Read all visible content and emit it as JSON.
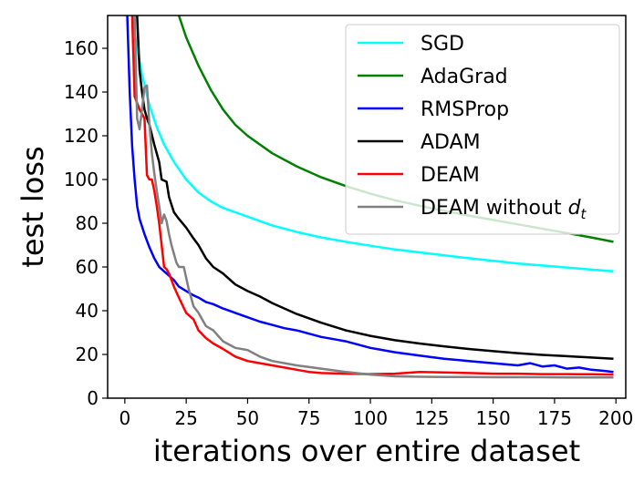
{
  "chart_data": {
    "type": "line",
    "xlabel": "iterations over entire dataset",
    "ylabel": "test loss",
    "xlim": [
      -7,
      204
    ],
    "ylim": [
      0,
      175
    ],
    "xticks": [
      0,
      25,
      50,
      75,
      100,
      125,
      150,
      175,
      200
    ],
    "yticks": [
      0,
      20,
      40,
      60,
      80,
      100,
      120,
      140,
      160
    ],
    "legend_position": "top-right",
    "series": [
      {
        "name": "SGD",
        "color": "#00ffff",
        "x": [
          3,
          5,
          7,
          10,
          13,
          16,
          20,
          25,
          30,
          35,
          40,
          45,
          50,
          60,
          70,
          80,
          90,
          100,
          110,
          125,
          140,
          150,
          160,
          175,
          190,
          199
        ],
        "y": [
          175,
          160,
          148,
          134,
          124,
          116,
          108,
          100,
          94,
          90,
          87,
          85,
          83,
          79,
          76,
          73.5,
          71.5,
          69.7,
          68,
          66,
          64,
          62.8,
          61.6,
          60.2,
          58.8,
          58
        ]
      },
      {
        "name": "AdaGrad",
        "color": "#008000",
        "x": [
          22,
          25,
          30,
          35,
          40,
          45,
          50,
          60,
          70,
          80,
          90,
          100,
          110,
          125,
          140,
          150,
          160,
          175,
          190,
          199
        ],
        "y": [
          175,
          165,
          152,
          141,
          132,
          125,
          120,
          112,
          106,
          101,
          97,
          93.5,
          90.5,
          86.8,
          83.5,
          81.5,
          79.5,
          76.5,
          73.5,
          71.5
        ]
      },
      {
        "name": "RMSProp",
        "color": "#0000ff",
        "x": [
          1,
          2,
          3,
          4,
          5,
          6,
          8,
          10,
          12,
          14,
          16,
          18,
          20,
          22,
          25,
          28,
          30,
          33,
          36,
          40,
          45,
          50,
          55,
          60,
          65,
          70,
          75,
          80,
          85,
          90,
          95,
          100,
          110,
          120,
          130,
          140,
          150,
          160,
          165,
          170,
          175,
          180,
          185,
          190,
          195,
          199
        ],
        "y": [
          175,
          140,
          115,
          100,
          88,
          82,
          75,
          69,
          64,
          60,
          58,
          56,
          54,
          51,
          49,
          47,
          46,
          44,
          43,
          41,
          39,
          37,
          35,
          33.5,
          32,
          31,
          29.5,
          28,
          27,
          26,
          24.5,
          23,
          21,
          19.5,
          18,
          17,
          16,
          15,
          16,
          14.5,
          15,
          13.5,
          14,
          13,
          12.5,
          12
        ]
      },
      {
        "name": "ADAM",
        "color": "#000000",
        "x": [
          5,
          6,
          7,
          8,
          9,
          10,
          12,
          14,
          15,
          17,
          18,
          20,
          22,
          25,
          28,
          30,
          33,
          36,
          40,
          45,
          50,
          55,
          60,
          70,
          80,
          90,
          100,
          110,
          120,
          130,
          140,
          150,
          160,
          170,
          180,
          190,
          199
        ],
        "y": [
          175,
          150,
          140,
          132,
          128,
          125,
          116,
          108,
          100,
          99,
          92,
          85,
          82,
          78,
          73,
          70,
          64,
          60,
          57,
          52,
          49,
          46.5,
          43.5,
          38.5,
          34.5,
          31,
          28.5,
          26.5,
          25,
          23.7,
          22.5,
          21.5,
          20.6,
          19.8,
          19.2,
          18.6,
          18
        ]
      },
      {
        "name": "DEAM",
        "color": "#ff0000",
        "x": [
          3,
          4,
          5,
          6,
          7,
          8,
          9,
          10,
          11,
          12,
          13,
          14,
          15,
          16,
          17,
          18,
          20,
          22,
          25,
          28,
          30,
          33,
          36,
          40,
          45,
          50,
          55,
          60,
          70,
          75,
          80,
          90,
          100,
          110,
          120,
          130,
          140,
          150,
          160,
          170,
          180,
          190,
          199
        ],
        "y": [
          175,
          138,
          135,
          132,
          130,
          128,
          102,
          100,
          100,
          95,
          88,
          80,
          70,
          60,
          59,
          57,
          51,
          46,
          39,
          36,
          31,
          27.5,
          25,
          22.5,
          19,
          17,
          16,
          15,
          13,
          12,
          11.5,
          11.2,
          11,
          11.2,
          12,
          11.8,
          11.5,
          11.2,
          11.2,
          11,
          11,
          10.9,
          10.8
        ]
      },
      {
        "name": "DEAM without d_t",
        "color": "#808080",
        "x": [
          4,
          5,
          6,
          7,
          8,
          9,
          10,
          11,
          12,
          13,
          14,
          15,
          16,
          17,
          18,
          19,
          20,
          21,
          22,
          24,
          26,
          28,
          30,
          33,
          36,
          40,
          45,
          50,
          55,
          60,
          70,
          80,
          90,
          100,
          110,
          120,
          130,
          140,
          150,
          160,
          170,
          180,
          190,
          199
        ],
        "y": [
          175,
          128,
          123,
          132,
          142,
          143,
          125,
          112,
          103,
          95,
          88,
          80,
          84,
          81,
          75,
          70,
          66,
          62,
          60,
          60,
          50,
          42,
          39,
          33,
          31,
          26,
          23,
          22,
          19,
          17,
          15,
          13.5,
          12,
          10.8,
          10,
          9.8,
          9.7,
          9.7,
          9.6,
          9.6,
          9.6,
          9.5,
          9.5,
          9.5
        ]
      }
    ]
  }
}
